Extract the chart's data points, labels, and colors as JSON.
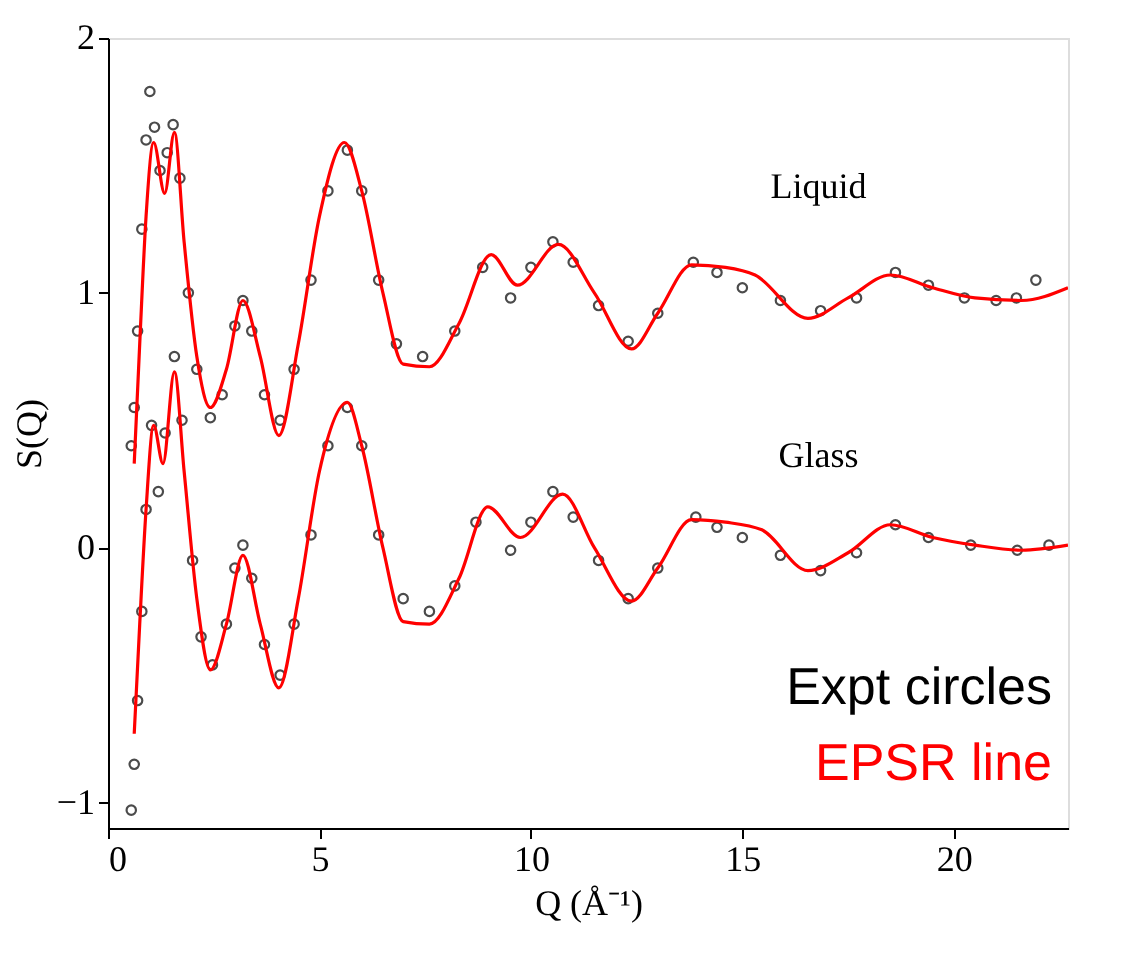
{
  "chart_data": {
    "type": "scatter",
    "xlabel": "Q (Å⁻¹)",
    "ylabel": "S(Q)",
    "xlim": [
      0,
      22.7
    ],
    "ylim": [
      -1.1,
      2
    ],
    "xticks": [
      0,
      5,
      10,
      15,
      20
    ],
    "yticks": [
      -1,
      0,
      1,
      2
    ],
    "grid": false,
    "legend": "bottom right",
    "series": [
      {
        "name": "Expt circles",
        "marker": "circle",
        "color": "#000000",
        "x": [
          0.55,
          0.62,
          0.7,
          0.8,
          0.9,
          0.99,
          1.1,
          1.23,
          1.4,
          1.54,
          1.7,
          1.9,
          2.1,
          2.42,
          2.7,
          3.0,
          3.19,
          3.4,
          3.7,
          4.07,
          4.4,
          4.8,
          5.2,
          5.66,
          6.0,
          6.4,
          6.82,
          7.44,
          8.2,
          8.86,
          9.52,
          10.0,
          10.52,
          11.0,
          11.6,
          12.3,
          13.0,
          13.84,
          14.4,
          15.0,
          15.9,
          16.85,
          17.7,
          18.62,
          19.4,
          20.25,
          21.0,
          21.48,
          21.94
        ],
        "values": [
          0.4,
          0.55,
          0.85,
          1.25,
          1.6,
          1.79,
          1.65,
          1.48,
          1.55,
          1.66,
          1.45,
          1.0,
          0.7,
          0.51,
          0.6,
          0.87,
          0.97,
          0.85,
          0.6,
          0.5,
          0.7,
          1.05,
          1.4,
          1.56,
          1.4,
          1.05,
          0.8,
          0.75,
          0.85,
          1.1,
          0.98,
          1.1,
          1.2,
          1.12,
          0.95,
          0.81,
          0.92,
          1.12,
          1.08,
          1.02,
          0.97,
          0.93,
          0.98,
          1.08,
          1.03,
          0.98,
          0.97,
          0.98,
          1.05
        ]
      },
      {
        "name": "EPSR line",
        "type": "line",
        "color": "#ff0000",
        "x": [
          0.62,
          0.75,
          0.9,
          1.08,
          1.34,
          1.57,
          1.8,
          2.1,
          2.42,
          2.8,
          3.19,
          3.6,
          4.04,
          4.5,
          5.0,
          5.59,
          6.0,
          6.5,
          6.98,
          7.6,
          8.3,
          9.06,
          9.68,
          10.65,
          11.5,
          12.38,
          13.0,
          13.8,
          14.6,
          15.3,
          16.55,
          17.5,
          18.5,
          19.5,
          20.5,
          21.6,
          22.7
        ],
        "values": [
          0.33,
          0.8,
          1.3,
          1.59,
          1.39,
          1.63,
          1.2,
          0.75,
          0.55,
          0.7,
          0.97,
          0.75,
          0.44,
          0.8,
          1.3,
          1.59,
          1.4,
          1.0,
          0.72,
          0.71,
          0.88,
          1.15,
          1.03,
          1.19,
          1.0,
          0.78,
          0.92,
          1.11,
          1.1,
          1.07,
          0.9,
          0.98,
          1.07,
          1.02,
          0.98,
          0.97,
          1.02
        ]
      },
      {
        "marker": "circle",
        "color": "#000000",
        "x": [
          0.55,
          0.62,
          0.7,
          0.8,
          0.9,
          1.03,
          1.19,
          1.35,
          1.57,
          1.75,
          2.0,
          2.2,
          2.47,
          2.8,
          3.0,
          3.19,
          3.4,
          3.7,
          4.07,
          4.4,
          4.8,
          5.2,
          5.66,
          6.0,
          6.4,
          6.98,
          7.6,
          8.2,
          8.7,
          9.52,
          10.0,
          10.52,
          11.0,
          11.6,
          12.3,
          13.0,
          13.9,
          14.4,
          15.0,
          15.9,
          16.85,
          17.7,
          18.62,
          19.4,
          20.4,
          21.5,
          22.25
        ],
        "values": [
          -1.03,
          -0.85,
          -0.6,
          -0.25,
          0.15,
          0.48,
          0.22,
          0.45,
          0.75,
          0.5,
          -0.05,
          -0.35,
          -0.46,
          -0.3,
          -0.08,
          0.01,
          -0.12,
          -0.38,
          -0.5,
          -0.3,
          0.05,
          0.4,
          0.55,
          0.4,
          0.05,
          -0.2,
          -0.25,
          -0.15,
          0.1,
          -0.01,
          0.1,
          0.22,
          0.12,
          -0.05,
          -0.2,
          -0.08,
          0.12,
          0.08,
          0.04,
          -0.03,
          -0.09,
          -0.02,
          0.09,
          0.04,
          0.01,
          -0.01,
          0.01
        ]
      },
      {
        "type": "line",
        "color": "#ff0000",
        "x": [
          0.62,
          0.75,
          0.9,
          1.08,
          1.3,
          1.57,
          1.8,
          2.1,
          2.42,
          2.8,
          3.19,
          3.6,
          4.04,
          4.5,
          5.0,
          5.66,
          6.0,
          6.5,
          6.98,
          7.6,
          8.3,
          8.98,
          9.75,
          10.75,
          11.5,
          12.38,
          13.0,
          13.8,
          14.6,
          15.46,
          16.55,
          17.5,
          18.5,
          19.5,
          20.5,
          21.6,
          22.7
        ],
        "values": [
          -0.73,
          -0.3,
          0.15,
          0.48,
          0.33,
          0.69,
          0.3,
          -0.2,
          -0.48,
          -0.3,
          -0.03,
          -0.3,
          -0.55,
          -0.2,
          0.3,
          0.57,
          0.4,
          0.0,
          -0.29,
          -0.3,
          -0.12,
          0.16,
          0.04,
          0.21,
          0.0,
          -0.21,
          -0.08,
          0.11,
          0.1,
          0.07,
          -0.09,
          -0.02,
          0.09,
          0.04,
          0.01,
          -0.01,
          0.01
        ]
      }
    ],
    "annotations": [
      "Liquid",
      "Glass"
    ]
  }
}
